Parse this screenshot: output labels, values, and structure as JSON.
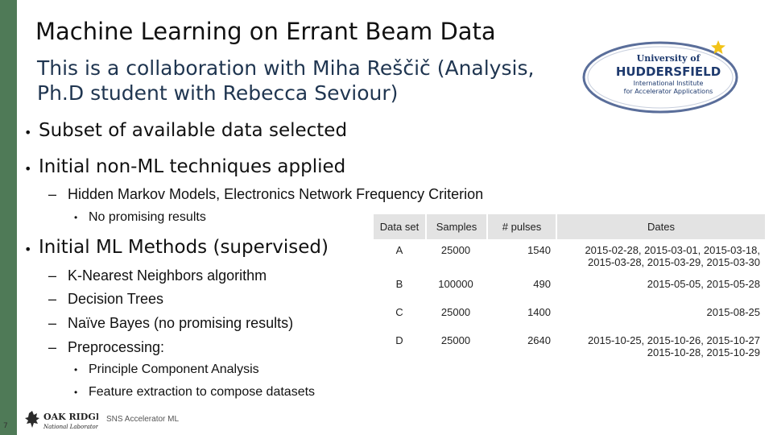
{
  "slide": {
    "title": "Machine Learning on Errant Beam Data",
    "subtitle_line1": "This is a collaboration with Miha Reščič (Analysis,",
    "subtitle_line2": "Ph.D student with Rebecca Seviour)",
    "page_number": "7",
    "footer_text": "SNS Accelerator ML"
  },
  "logo": {
    "line1": "University of",
    "line2": "HUDDERSFIELD",
    "line3": "International Institute",
    "line4": "for Accelerator Applications",
    "star_color": "#f2c318",
    "ring_color": "#5a6e9a"
  },
  "footer_logo": {
    "line1": "OAK RIDGE",
    "line2": "National Laboratory"
  },
  "bullets": {
    "b1": "Subset of available data selected",
    "b2": "Initial non-ML techniques applied",
    "b2_sub1": "Hidden Markov Models, Electronics Network Frequency Criterion",
    "b2_sub1_sub1": "No promising results",
    "b3": "Initial ML Methods (supervised)",
    "b3_sub1": "K-Nearest Neighbors algorithm",
    "b3_sub2": "Decision Trees",
    "b3_sub3": "Naïve Bayes (no promising results)",
    "b3_sub4": "Preprocessing:",
    "b3_sub4_sub1": "Principle Component Analysis",
    "b3_sub4_sub2": "Feature extraction to compose datasets"
  },
  "table": {
    "headers": [
      "Data set",
      "Samples",
      "# pulses",
      "Dates"
    ],
    "rows": [
      {
        "set": "A",
        "samples": "25000",
        "pulses": "1540",
        "dates_line1": "2015-02-28, 2015-03-01, 2015-03-18,",
        "dates_line2": "2015-03-28, 2015-03-29, 2015-03-30"
      },
      {
        "set": "B",
        "samples": "100000",
        "pulses": "490",
        "dates_line1": "2015-05-05, 2015-05-28",
        "dates_line2": ""
      },
      {
        "set": "C",
        "samples": "25000",
        "pulses": "1400",
        "dates_line1": "2015-08-25",
        "dates_line2": ""
      },
      {
        "set": "D",
        "samples": "25000",
        "pulses": "2640",
        "dates_line1": "2015-10-25, 2015-10-26, 2015-10-27",
        "dates_line2": "2015-10-28, 2015-10-29"
      }
    ]
  }
}
